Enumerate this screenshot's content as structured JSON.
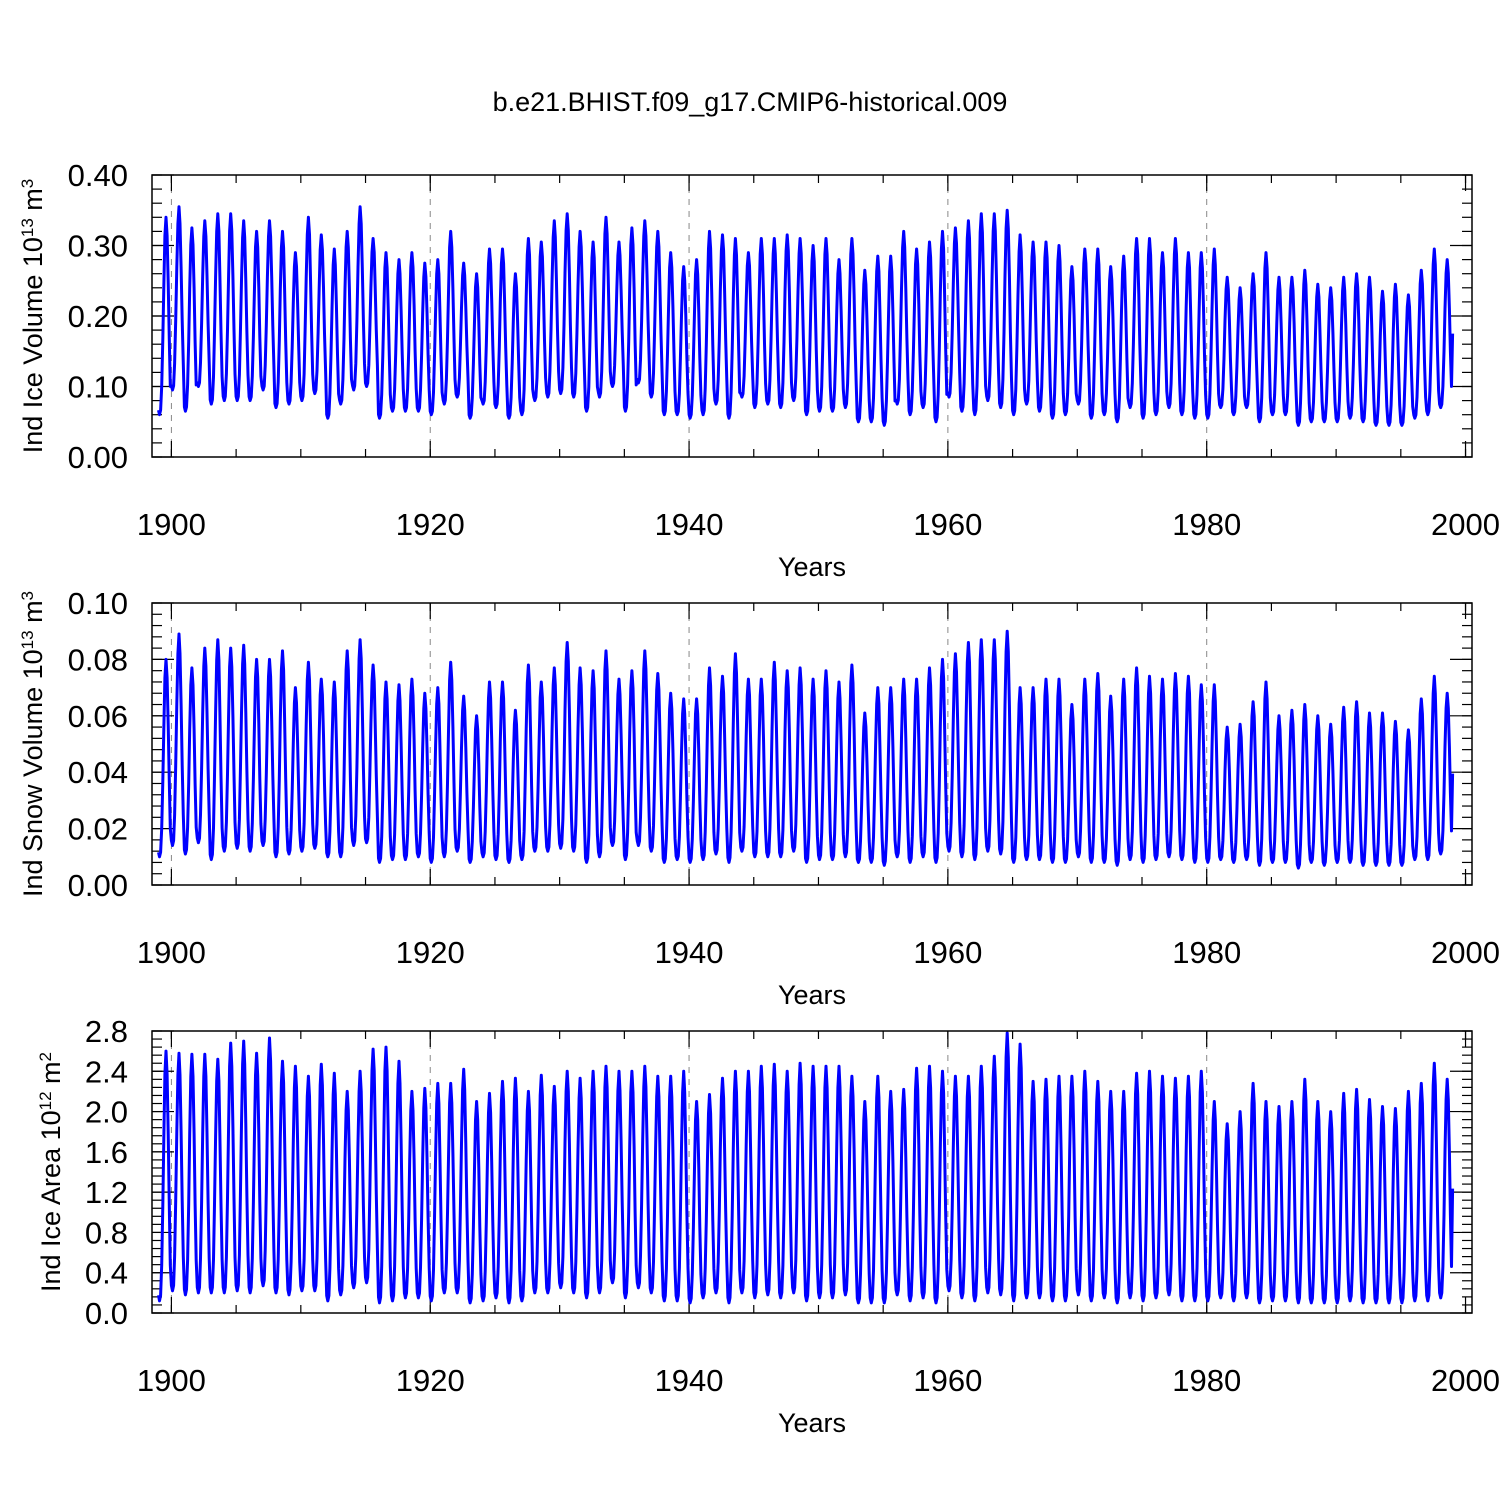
{
  "figure_title": "b.e21.BHIST.f09_g17.CMIP6-historical.009",
  "chart_data": [
    {
      "type": "line",
      "name": "ice-volume",
      "ylabel_main": "Ind Ice Volume 10",
      "ylabel_exp": "13",
      "ylabel_unit": " m",
      "ylabel_unit_exp": "3",
      "xlabel": "Years",
      "xlim": [
        1898.5,
        2000.5
      ],
      "ylim": [
        0.0,
        0.4
      ],
      "x_ticks": [
        1900,
        1920,
        1940,
        1960,
        1980,
        2000
      ],
      "x_tick_labels": [
        "1900",
        "1920",
        "1940",
        "1960",
        "1980",
        "2000"
      ],
      "y_ticks": [
        0.0,
        0.1,
        0.2,
        0.3,
        0.4
      ],
      "y_tick_labels": [
        "0.00",
        "0.10",
        "0.20",
        "0.30",
        "0.40"
      ],
      "grid_x": [
        1900,
        1920,
        1940,
        1960,
        1980
      ],
      "series_color": "#0000ff",
      "series": [
        {
          "name": "Ind Ice Volume",
          "start_year": 1899,
          "annual_max": [
            0.34,
            0.355,
            0.325,
            0.335,
            0.345,
            0.345,
            0.335,
            0.32,
            0.335,
            0.32,
            0.29,
            0.34,
            0.315,
            0.295,
            0.32,
            0.355,
            0.31,
            0.29,
            0.28,
            0.29,
            0.275,
            0.28,
            0.32,
            0.275,
            0.26,
            0.295,
            0.295,
            0.26,
            0.31,
            0.305,
            0.335,
            0.345,
            0.32,
            0.305,
            0.34,
            0.305,
            0.325,
            0.335,
            0.32,
            0.29,
            0.27,
            0.28,
            0.32,
            0.315,
            0.31,
            0.29,
            0.31,
            0.31,
            0.315,
            0.31,
            0.3,
            0.31,
            0.28,
            0.31,
            0.265,
            0.285,
            0.285,
            0.32,
            0.295,
            0.305,
            0.32,
            0.325,
            0.335,
            0.345,
            0.345,
            0.35,
            0.315,
            0.305,
            0.305,
            0.3,
            0.27,
            0.295,
            0.295,
            0.27,
            0.285,
            0.31,
            0.31,
            0.29,
            0.31,
            0.29,
            0.29,
            0.295,
            0.255,
            0.24,
            0.26,
            0.29,
            0.255,
            0.255,
            0.265,
            0.245,
            0.24,
            0.255,
            0.26,
            0.255,
            0.235,
            0.245,
            0.23,
            0.265,
            0.295,
            0.28
          ],
          "annual_min": [
            0.06,
            0.095,
            0.065,
            0.1,
            0.075,
            0.08,
            0.08,
            0.08,
            0.095,
            0.07,
            0.075,
            0.08,
            0.09,
            0.055,
            0.075,
            0.095,
            0.1,
            0.055,
            0.065,
            0.065,
            0.065,
            0.06,
            0.075,
            0.085,
            0.055,
            0.075,
            0.07,
            0.055,
            0.06,
            0.08,
            0.085,
            0.09,
            0.085,
            0.065,
            0.085,
            0.1,
            0.065,
            0.105,
            0.085,
            0.06,
            0.06,
            0.055,
            0.06,
            0.075,
            0.055,
            0.085,
            0.07,
            0.075,
            0.07,
            0.08,
            0.06,
            0.065,
            0.065,
            0.07,
            0.05,
            0.05,
            0.045,
            0.075,
            0.06,
            0.07,
            0.05,
            0.085,
            0.065,
            0.06,
            0.08,
            0.07,
            0.06,
            0.075,
            0.065,
            0.055,
            0.06,
            0.075,
            0.055,
            0.06,
            0.05,
            0.07,
            0.055,
            0.06,
            0.07,
            0.06,
            0.055,
            0.055,
            0.07,
            0.06,
            0.07,
            0.05,
            0.06,
            0.06,
            0.045,
            0.05,
            0.05,
            0.05,
            0.055,
            0.05,
            0.045,
            0.045,
            0.045,
            0.055,
            0.06,
            0.07
          ]
        }
      ]
    },
    {
      "type": "line",
      "name": "snow-volume",
      "ylabel_main": "Ind Snow Volume 10",
      "ylabel_exp": "13",
      "ylabel_unit": " m",
      "ylabel_unit_exp": "3",
      "xlabel": "Years",
      "xlim": [
        1898.5,
        2000.5
      ],
      "ylim": [
        0.0,
        0.1
      ],
      "x_ticks": [
        1900,
        1920,
        1940,
        1960,
        1980,
        2000
      ],
      "x_tick_labels": [
        "1900",
        "1920",
        "1940",
        "1960",
        "1980",
        "2000"
      ],
      "y_ticks": [
        0.0,
        0.02,
        0.04,
        0.06,
        0.08,
        0.1
      ],
      "y_tick_labels": [
        "0.00",
        "0.02",
        "0.04",
        "0.06",
        "0.08",
        "0.10"
      ],
      "grid_x": [
        1900,
        1920,
        1940,
        1960,
        1980
      ],
      "series_color": "#0000ff",
      "series": [
        {
          "name": "Ind Snow Volume",
          "start_year": 1899,
          "annual_max": [
            0.08,
            0.089,
            0.077,
            0.084,
            0.087,
            0.084,
            0.085,
            0.08,
            0.08,
            0.083,
            0.07,
            0.079,
            0.073,
            0.072,
            0.083,
            0.087,
            0.078,
            0.072,
            0.071,
            0.073,
            0.068,
            0.07,
            0.079,
            0.067,
            0.06,
            0.072,
            0.072,
            0.062,
            0.078,
            0.072,
            0.077,
            0.086,
            0.077,
            0.076,
            0.083,
            0.073,
            0.076,
            0.083,
            0.075,
            0.068,
            0.066,
            0.066,
            0.077,
            0.074,
            0.082,
            0.073,
            0.073,
            0.079,
            0.076,
            0.077,
            0.073,
            0.076,
            0.072,
            0.078,
            0.061,
            0.07,
            0.07,
            0.073,
            0.073,
            0.077,
            0.08,
            0.082,
            0.086,
            0.087,
            0.087,
            0.09,
            0.07,
            0.07,
            0.073,
            0.073,
            0.064,
            0.073,
            0.075,
            0.067,
            0.073,
            0.077,
            0.074,
            0.073,
            0.075,
            0.074,
            0.071,
            0.071,
            0.056,
            0.057,
            0.065,
            0.072,
            0.06,
            0.062,
            0.064,
            0.06,
            0.057,
            0.063,
            0.065,
            0.061,
            0.061,
            0.058,
            0.055,
            0.066,
            0.074,
            0.068
          ],
          "annual_min": [
            0.01,
            0.014,
            0.011,
            0.015,
            0.009,
            0.012,
            0.013,
            0.012,
            0.014,
            0.01,
            0.011,
            0.012,
            0.013,
            0.01,
            0.01,
            0.014,
            0.015,
            0.008,
            0.009,
            0.009,
            0.01,
            0.008,
            0.01,
            0.012,
            0.008,
            0.01,
            0.009,
            0.008,
            0.009,
            0.012,
            0.012,
            0.013,
            0.012,
            0.008,
            0.01,
            0.014,
            0.009,
            0.014,
            0.012,
            0.008,
            0.009,
            0.008,
            0.009,
            0.011,
            0.008,
            0.012,
            0.01,
            0.01,
            0.01,
            0.012,
            0.008,
            0.009,
            0.009,
            0.01,
            0.008,
            0.008,
            0.007,
            0.01,
            0.008,
            0.01,
            0.008,
            0.012,
            0.01,
            0.009,
            0.012,
            0.011,
            0.008,
            0.009,
            0.009,
            0.008,
            0.008,
            0.01,
            0.008,
            0.008,
            0.007,
            0.009,
            0.008,
            0.009,
            0.01,
            0.009,
            0.008,
            0.008,
            0.009,
            0.008,
            0.009,
            0.007,
            0.008,
            0.008,
            0.006,
            0.008,
            0.007,
            0.008,
            0.008,
            0.007,
            0.007,
            0.007,
            0.007,
            0.009,
            0.009,
            0.011
          ]
        }
      ]
    },
    {
      "type": "line",
      "name": "ice-area",
      "ylabel_main": "Ind Ice Area 10",
      "ylabel_exp": "12",
      "ylabel_unit": " m",
      "ylabel_unit_exp": "2",
      "xlabel": "Years",
      "xlim": [
        1898.5,
        2000.5
      ],
      "ylim": [
        0.0,
        2.8
      ],
      "x_ticks": [
        1900,
        1920,
        1940,
        1960,
        1980,
        2000
      ],
      "x_tick_labels": [
        "1900",
        "1920",
        "1940",
        "1960",
        "1980",
        "2000"
      ],
      "y_ticks": [
        0.0,
        0.4,
        0.8,
        1.2,
        1.6,
        2.0,
        2.4,
        2.8
      ],
      "y_tick_labels": [
        "0.0",
        "0.4",
        "0.8",
        "1.2",
        "1.6",
        "2.0",
        "2.4",
        "2.8"
      ],
      "grid_x": [
        1900,
        1920,
        1940,
        1960,
        1980
      ],
      "series_color": "#0000ff",
      "series": [
        {
          "name": "Ind Ice Area",
          "start_year": 1899,
          "annual_max": [
            2.6,
            2.58,
            2.57,
            2.57,
            2.52,
            2.68,
            2.7,
            2.58,
            2.73,
            2.5,
            2.45,
            2.35,
            2.47,
            2.38,
            2.2,
            2.4,
            2.62,
            2.64,
            2.5,
            2.2,
            2.23,
            2.28,
            2.28,
            2.42,
            2.1,
            2.18,
            2.3,
            2.33,
            2.2,
            2.36,
            2.25,
            2.4,
            2.33,
            2.4,
            2.45,
            2.4,
            2.4,
            2.45,
            2.35,
            2.35,
            2.4,
            2.1,
            2.17,
            2.33,
            2.4,
            2.4,
            2.45,
            2.47,
            2.4,
            2.48,
            2.45,
            2.45,
            2.45,
            2.35,
            2.1,
            2.35,
            2.2,
            2.22,
            2.43,
            2.45,
            2.4,
            2.35,
            2.35,
            2.45,
            2.55,
            2.78,
            2.67,
            2.3,
            2.32,
            2.35,
            2.35,
            2.4,
            2.3,
            2.2,
            2.2,
            2.38,
            2.4,
            2.35,
            2.33,
            2.35,
            2.4,
            2.1,
            1.88,
            2.0,
            2.28,
            2.1,
            2.05,
            2.1,
            2.32,
            2.1,
            2.0,
            2.18,
            2.22,
            2.12,
            2.05,
            2.03,
            2.2,
            2.28,
            2.48,
            2.32
          ],
          "annual_min": [
            0.12,
            0.22,
            0.18,
            0.2,
            0.2,
            0.2,
            0.22,
            0.2,
            0.27,
            0.2,
            0.18,
            0.22,
            0.22,
            0.12,
            0.18,
            0.25,
            0.3,
            0.1,
            0.12,
            0.15,
            0.15,
            0.12,
            0.2,
            0.2,
            0.1,
            0.12,
            0.15,
            0.1,
            0.12,
            0.2,
            0.2,
            0.25,
            0.2,
            0.15,
            0.2,
            0.3,
            0.15,
            0.25,
            0.2,
            0.12,
            0.12,
            0.1,
            0.15,
            0.2,
            0.1,
            0.2,
            0.15,
            0.18,
            0.15,
            0.2,
            0.12,
            0.15,
            0.15,
            0.18,
            0.1,
            0.1,
            0.1,
            0.18,
            0.12,
            0.15,
            0.1,
            0.22,
            0.15,
            0.12,
            0.2,
            0.18,
            0.12,
            0.15,
            0.15,
            0.12,
            0.12,
            0.18,
            0.12,
            0.15,
            0.1,
            0.15,
            0.12,
            0.15,
            0.18,
            0.12,
            0.12,
            0.12,
            0.15,
            0.12,
            0.15,
            0.1,
            0.12,
            0.12,
            0.1,
            0.1,
            0.1,
            0.1,
            0.12,
            0.1,
            0.1,
            0.1,
            0.1,
            0.12,
            0.12,
            0.15
          ]
        }
      ]
    }
  ]
}
